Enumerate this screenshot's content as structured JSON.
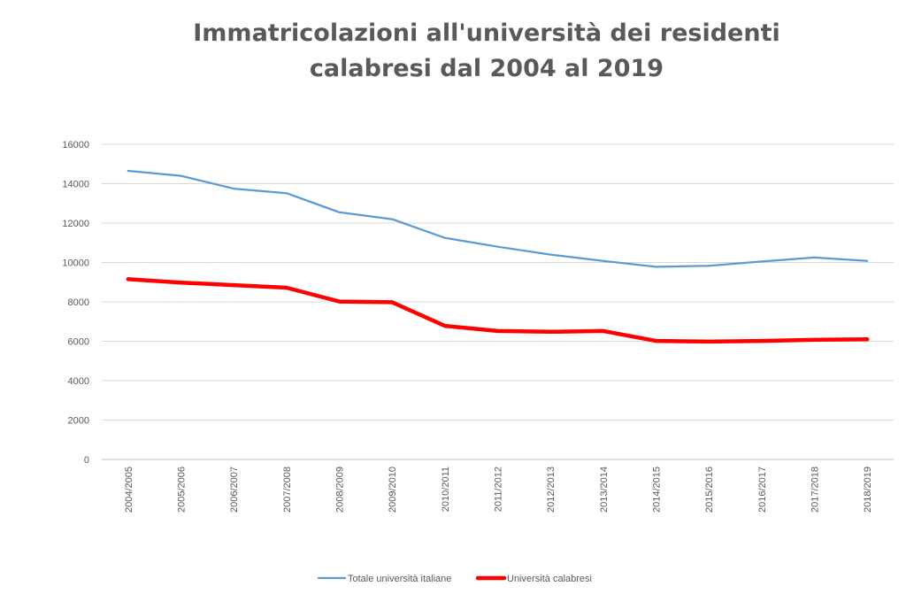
{
  "chart_data": {
    "type": "line",
    "title_lines": [
      "Immatricolazioni all'università dei residenti",
      "calabresi dal 2004 al 2019"
    ],
    "xlabel": "",
    "ylabel": "",
    "ylim": [
      0,
      16000
    ],
    "yticks": [
      "0",
      "2000",
      "4000",
      "6000",
      "8000",
      "10000",
      "12000",
      "14000",
      "16000"
    ],
    "categories": [
      "2004/2005",
      "2005/2006",
      "2006/2007",
      "2007/2008",
      "2008/2009",
      "2009/2010",
      "2010/2011",
      "2011/2012",
      "2012/2013",
      "2013/2014",
      "2014/2015",
      "2015/2016",
      "2016/2017",
      "2017/2018",
      "2018/2019"
    ],
    "series": [
      {
        "name": "Totale università italiane",
        "color": "#5b9bd5",
        "values": [
          14650,
          14400,
          13750,
          13520,
          12550,
          12200,
          11250,
          10800,
          10400,
          10080,
          9780,
          9830,
          10050,
          10250,
          10080
        ]
      },
      {
        "name": "Università calabresi",
        "color": "#ff0000",
        "values": [
          9150,
          8980,
          8850,
          8720,
          8020,
          7980,
          6780,
          6520,
          6480,
          6520,
          6020,
          5980,
          6020,
          6070,
          6100
        ]
      }
    ],
    "grid": true,
    "legend_position": "bottom"
  }
}
